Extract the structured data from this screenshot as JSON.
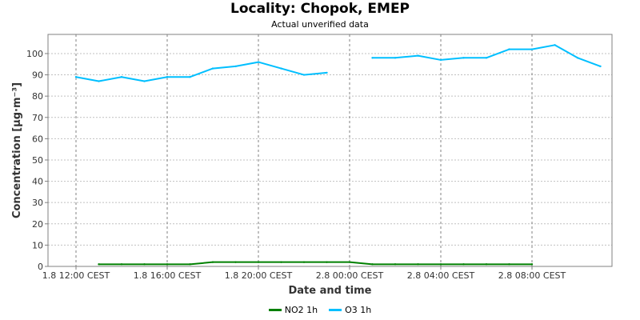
{
  "colors": {
    "no2": "#008000",
    "o3": "#00bfff",
    "grid": "#c0c0c0",
    "axis": "#808080"
  },
  "chart_data": {
    "type": "line",
    "title": "Locality: Chopok, EMEP",
    "subtitle": "Actual unverified data",
    "xlabel": "Date and time",
    "ylabel": "Concentration [µg·m⁻³]",
    "ylim": [
      0,
      109
    ],
    "y_ticks": [
      0,
      10,
      20,
      30,
      40,
      50,
      60,
      70,
      80,
      90,
      100
    ],
    "x_unit": "hour",
    "x_ticks": [
      "1.8 12:00 CEST",
      "1.8 16:00 CEST",
      "1.8 20:00 CEST",
      "2.8 00:00 CEST",
      "2.8 04:00 CEST",
      "2.8 08:00 CEST"
    ],
    "x": [
      "1.8 12:00",
      "1.8 13:00",
      "1.8 14:00",
      "1.8 15:00",
      "1.8 16:00",
      "1.8 17:00",
      "1.8 18:00",
      "1.8 19:00",
      "1.8 20:00",
      "1.8 21:00",
      "1.8 22:00",
      "1.8 23:00",
      "2.8 00:00",
      "2.8 01:00",
      "2.8 02:00",
      "2.8 03:00",
      "2.8 04:00",
      "2.8 05:00",
      "2.8 06:00",
      "2.8 07:00",
      "2.8 08:00",
      "2.8 09:00",
      "2.8 10:00",
      "2.8 11:00"
    ],
    "series": [
      {
        "name": "NO2 1h",
        "color": "#008000",
        "values": [
          null,
          1,
          1,
          1,
          1,
          1,
          2,
          2,
          2,
          2,
          2,
          2,
          2,
          1,
          1,
          1,
          1,
          1,
          1,
          1,
          1,
          null,
          null,
          null
        ]
      },
      {
        "name": "O3 1h",
        "color": "#00bfff",
        "values": [
          89,
          87,
          89,
          87,
          89,
          89,
          93,
          94,
          96,
          93,
          90,
          91,
          null,
          98,
          98,
          99,
          97,
          98,
          98,
          102,
          102,
          104,
          98,
          94
        ]
      }
    ],
    "grid": true,
    "legend_position": "bottom"
  }
}
